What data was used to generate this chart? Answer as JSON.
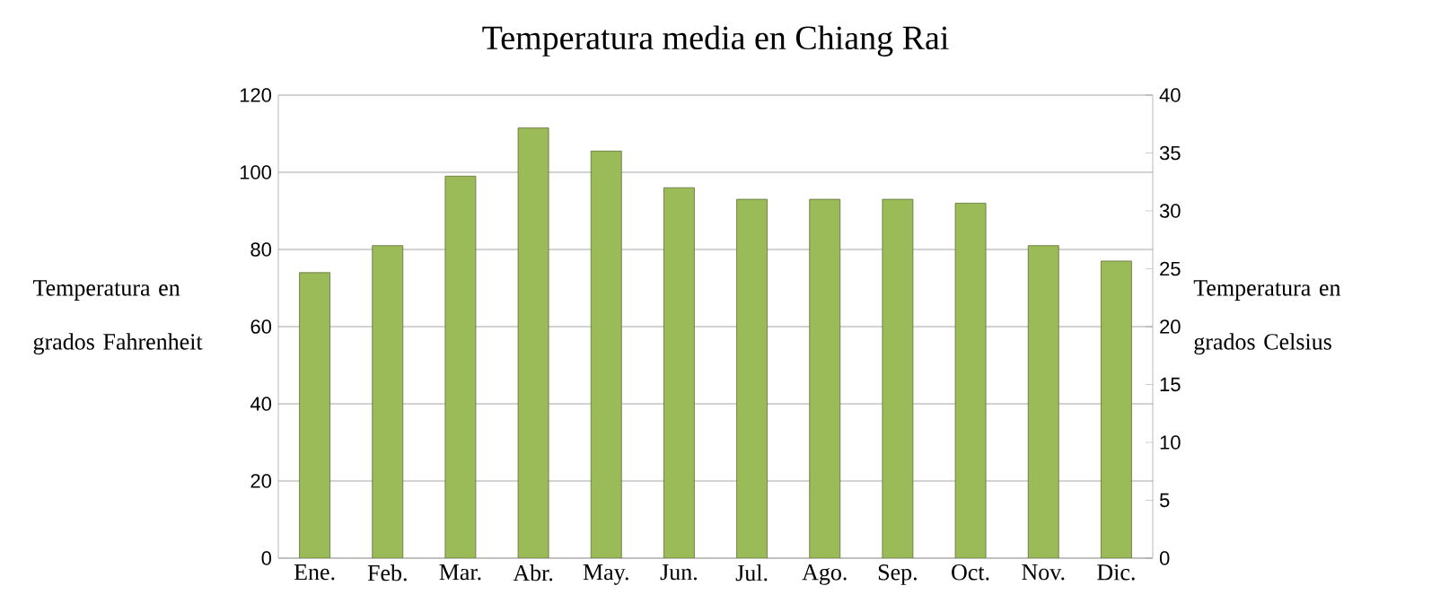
{
  "chart_data": {
    "type": "bar",
    "title": "Temperatura media en Chiang Rai",
    "ylabel": "Temperatura en grados Fahrenheit",
    "y2label": "Temperatura en grados Celsius",
    "categories": [
      "Ene.",
      "Feb.",
      "Mar.",
      "Abr.",
      "May.",
      "Jun.",
      "Jul.",
      "Ago.",
      "Sep.",
      "Oct.",
      "Nov.",
      "Dic."
    ],
    "values": [
      74,
      81,
      99,
      111.5,
      105.5,
      96,
      93,
      93,
      93,
      92,
      81,
      77
    ],
    "color": "#9bbb59",
    "ylim": [
      0,
      120
    ],
    "yticks": [
      0,
      20,
      40,
      60,
      80,
      100,
      120
    ],
    "y2lim": [
      0,
      40
    ],
    "y2ticks": [
      0,
      5,
      10,
      15,
      20,
      25,
      30,
      35,
      40
    ],
    "grid": "y"
  }
}
